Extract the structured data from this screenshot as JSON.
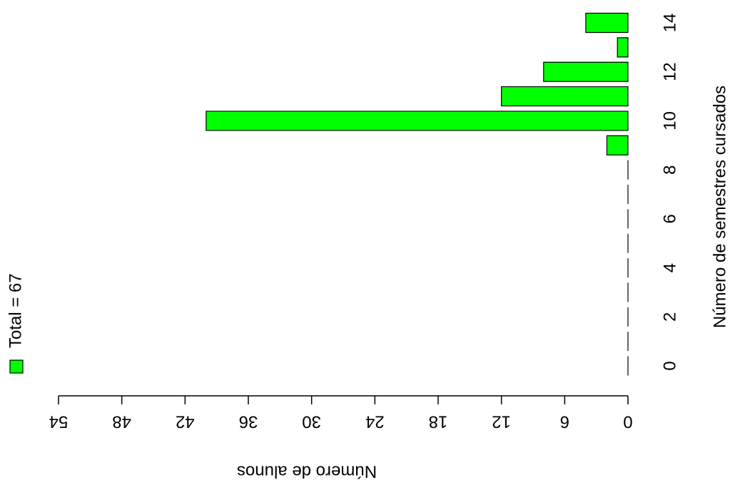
{
  "chart_data": {
    "type": "bar",
    "orientation": "horizontal",
    "xaxis_reversed": true,
    "xlabel": "Número de alunos",
    "ylabel": "Número de semestres cursados",
    "categories": [
      "0",
      null,
      "2",
      null,
      "4",
      null,
      "6",
      null,
      "8",
      null,
      "10",
      null,
      "12",
      null,
      "14"
    ],
    "series": [
      {
        "name": "Total = 67",
        "color": "#00ff00",
        "values": [
          0,
          0,
          0,
          0,
          0,
          0,
          0,
          0,
          0,
          2,
          40,
          12,
          8,
          1,
          4
        ]
      }
    ],
    "xlim": [
      0,
      54
    ],
    "xticks": [
      0,
      6,
      12,
      18,
      24,
      30,
      36,
      42,
      48,
      54
    ]
  }
}
